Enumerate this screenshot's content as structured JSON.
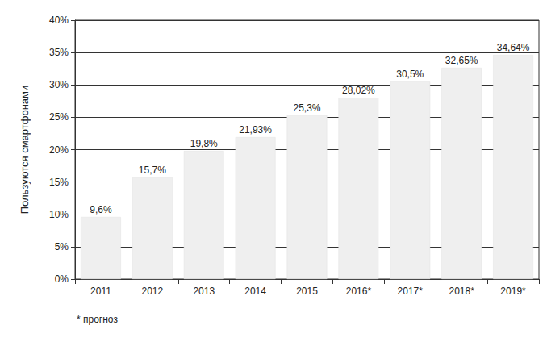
{
  "chart_data": {
    "type": "bar",
    "y_label": "Пользуются смартфонами",
    "categories": [
      "2011",
      "2012",
      "2013",
      "2014",
      "2015",
      "2016*",
      "2017*",
      "2018*",
      "2019*"
    ],
    "values": [
      9.6,
      15.7,
      19.8,
      21.93,
      25.3,
      28.02,
      30.5,
      32.65,
      34.64
    ],
    "value_labels": [
      "9,6%",
      "15,7%",
      "19,8%",
      "21,93%",
      "25,3%",
      "28,02%",
      "30,5%",
      "32,65%",
      "34,64%"
    ],
    "data_labels": true,
    "color": "#efefef",
    "ylim": [
      0,
      40
    ],
    "yticks": [
      {
        "value": 0,
        "label": "0%"
      },
      {
        "value": 5,
        "label": "5%"
      },
      {
        "value": 10,
        "label": "10%"
      },
      {
        "value": 15,
        "label": "15%"
      },
      {
        "value": 20,
        "label": "20%"
      },
      {
        "value": 25,
        "label": "25%"
      },
      {
        "value": 30,
        "label": "30%"
      },
      {
        "value": 35,
        "label": "35%"
      },
      {
        "value": 40,
        "label": "40%"
      }
    ],
    "grid": true,
    "annotation": "* прогноз"
  }
}
